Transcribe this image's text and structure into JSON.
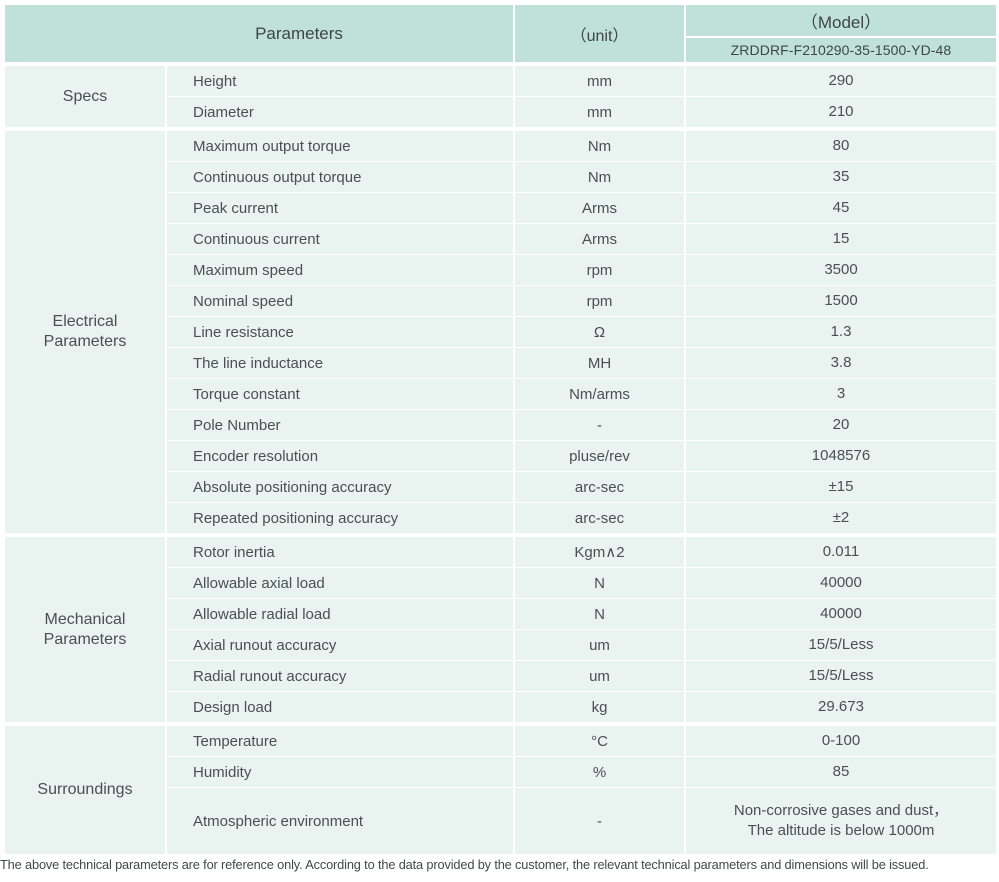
{
  "header": {
    "parameters_label": "Parameters",
    "unit_label": "（unit）",
    "model_label": "（Model）",
    "model_value": "ZRDDRF-F210290-35-1500-YD-48"
  },
  "colors": {
    "header_bg": "#bfe1d9",
    "row_bg": "#e9f4f1",
    "text": "#4a4f52",
    "header_text": "#3f4547"
  },
  "sections": [
    {
      "group": "Specs",
      "rows": [
        {
          "param": "Height",
          "unit": "mm",
          "value": "290"
        },
        {
          "param": "Diameter",
          "unit": "mm",
          "value": "210"
        }
      ]
    },
    {
      "group": "Electrical Parameters",
      "rows": [
        {
          "param": "Maximum output torque",
          "unit": "Nm",
          "value": "80"
        },
        {
          "param": "Continuous output torque",
          "unit": "Nm",
          "value": "35"
        },
        {
          "param": "Peak current",
          "unit": "Arms",
          "value": "45"
        },
        {
          "param": "Continuous current",
          "unit": "Arms",
          "value": "15"
        },
        {
          "param": "Maximum speed",
          "unit": "rpm",
          "value": "3500"
        },
        {
          "param": "Nominal speed",
          "unit": "rpm",
          "value": "1500"
        },
        {
          "param": "Line resistance",
          "unit": "Ω",
          "value": "1.3"
        },
        {
          "param": "The line inductance",
          "unit": "MH",
          "value": "3.8"
        },
        {
          "param": "Torque constant",
          "unit": "Nm/arms",
          "value": "3"
        },
        {
          "param": "Pole Number",
          "unit": "-",
          "value": "20"
        },
        {
          "param": "Encoder resolution",
          "unit": "pluse/rev",
          "value": "1048576"
        },
        {
          "param": "Absolute positioning accuracy",
          "unit": "arc-sec",
          "value": "±15"
        },
        {
          "param": "Repeated positioning accuracy",
          "unit": "arc-sec",
          "value": "±2"
        }
      ]
    },
    {
      "group": "Mechanical Parameters",
      "rows": [
        {
          "param": "Rotor inertia",
          "unit": "Kgm∧2",
          "value": "0.011"
        },
        {
          "param": "Allowable axial load",
          "unit": "N",
          "value": "40000"
        },
        {
          "param": "Allowable radial load",
          "unit": "N",
          "value": "40000"
        },
        {
          "param": "Axial runout accuracy",
          "unit": "um",
          "value": "15/5/Less"
        },
        {
          "param": "Radial runout accuracy",
          "unit": "um",
          "value": "15/5/Less"
        },
        {
          "param": "Design load",
          "unit": "kg",
          "value": "29.673"
        }
      ]
    },
    {
      "group": "Surroundings",
      "rows": [
        {
          "param": "Temperature",
          "unit": "°C",
          "value": "0-100"
        },
        {
          "param": "Humidity",
          "unit": "%",
          "value": "85"
        },
        {
          "param": "Atmospheric environment",
          "unit": "-",
          "tall": true,
          "value_lines": [
            "Non-corrosive gases and dust，",
            "The altitude is below 1000m"
          ]
        }
      ]
    }
  ],
  "footer": {
    "note": "The above technical parameters are for reference only. According to the data provided by the customer, the relevant technical parameters and dimensions will be issued."
  }
}
